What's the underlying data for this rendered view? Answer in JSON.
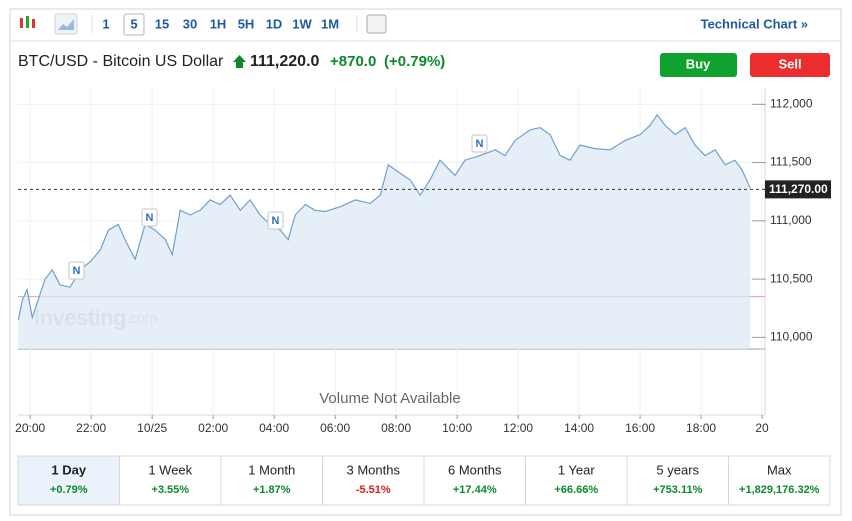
{
  "toolbar": {
    "intervals": [
      "1",
      "5",
      "15",
      "30",
      "1H",
      "5H",
      "1D",
      "1W",
      "1M"
    ],
    "selected": "5",
    "technical_chart": "Technical Chart »"
  },
  "header": {
    "name": "BTC/USD - Bitcoin US Dollar",
    "price": "111,220.0",
    "change": "+870.0",
    "change_pct": "(+0.79%)",
    "buy": "Buy",
    "sell": "Sell"
  },
  "chart_data": {
    "type": "line",
    "color": "#6fa0cf",
    "x": [
      -0.39,
      -0.26,
      -0.1,
      0.07,
      0.26,
      0.49,
      0.72,
      0.98,
      1.31,
      1.64,
      1.97,
      2.3,
      2.56,
      2.89,
      3.11,
      3.44,
      3.77,
      4.1,
      4.43,
      4.66,
      4.92,
      5.25,
      5.57,
      5.9,
      6.23,
      6.56,
      6.89,
      7.21,
      7.54,
      7.87,
      8.2,
      8.46,
      8.69,
      9.02,
      9.34,
      9.67,
      10.16,
      10.66,
      11.15,
      11.48,
      11.74,
      12.07,
      12.46,
      12.79,
      13.11,
      13.44,
      13.93,
      14.26,
      14.75,
      15.25,
      15.57,
      15.9,
      16.39,
      16.72,
      17.05,
      17.38,
      17.7,
      18.03,
      18.52,
      19.02,
      19.51,
      20.0,
      20.33,
      20.56,
      20.82,
      21.15,
      21.48,
      21.8,
      22.13,
      22.46,
      22.79,
      23.11,
      23.34,
      23.61
    ],
    "values": [
      110150,
      110320,
      110410,
      110170,
      110320,
      110500,
      110580,
      110450,
      110430,
      110580,
      110650,
      110750,
      110920,
      110970,
      110840,
      110670,
      110970,
      110920,
      110840,
      110710,
      111090,
      111050,
      111090,
      111180,
      111140,
      111220,
      111090,
      111180,
      111050,
      110970,
      110920,
      110840,
      111050,
      111140,
      111090,
      111080,
      111120,
      111180,
      111150,
      111220,
      111480,
      111420,
      111350,
      111220,
      111350,
      111520,
      111390,
      111520,
      111560,
      111610,
      111560,
      111690,
      111780,
      111800,
      111740,
      111560,
      111520,
      111650,
      111620,
      111610,
      111690,
      111740,
      111820,
      111910,
      111820,
      111740,
      111800,
      111650,
      111560,
      111610,
      111480,
      111520,
      111440,
      111280
    ],
    "xlim": [
      -0.4,
      23.67
    ],
    "ylim": [
      109900,
      112140
    ],
    "xticks": [
      {
        "value": 0,
        "label": "20:00"
      },
      {
        "value": 2,
        "label": "22:00"
      },
      {
        "value": 4,
        "label": "10/25"
      },
      {
        "value": 6,
        "label": "02:00"
      },
      {
        "value": 8,
        "label": "04:00"
      },
      {
        "value": 10,
        "label": "06:00"
      },
      {
        "value": 12,
        "label": "08:00"
      },
      {
        "value": 14,
        "label": "10:00"
      },
      {
        "value": 16,
        "label": "12:00"
      },
      {
        "value": 18,
        "label": "14:00"
      },
      {
        "value": 20,
        "label": "16:00"
      },
      {
        "value": 22,
        "label": "18:00"
      },
      {
        "value": 24,
        "label": "20"
      }
    ],
    "yticks": [
      {
        "value": 110000,
        "label": "110,000"
      },
      {
        "value": 110500,
        "label": "110,500"
      },
      {
        "value": 111000,
        "label": "111,000"
      },
      {
        "value": 111500,
        "label": "111,500"
      },
      {
        "value": 112000,
        "label": "112,000"
      }
    ],
    "last_price": {
      "value": 111270,
      "label": "111,270.00"
    },
    "prev_close": 110350,
    "news_markers": [
      "N",
      "N",
      "N",
      "N"
    ],
    "watermark": [
      "Investing",
      ".com"
    ],
    "volume_note": "Volume Not Available"
  },
  "periods": [
    {
      "label": "1 Day",
      "change": "+0.79%",
      "color": "#0a8a2a"
    },
    {
      "label": "1 Week",
      "change": "+3.55%",
      "color": "#0a8a2a"
    },
    {
      "label": "1 Month",
      "change": "+1.87%",
      "color": "#0a8a2a"
    },
    {
      "label": "3 Months",
      "change": "-5.51%",
      "color": "#d32020"
    },
    {
      "label": "6 Months",
      "change": "+17.44%",
      "color": "#0a8a2a"
    },
    {
      "label": "1 Year",
      "change": "+66.66%",
      "color": "#0a8a2a"
    },
    {
      "label": "5 years",
      "change": "+753.11%",
      "color": "#0a8a2a"
    },
    {
      "label": "Max",
      "change": "+1,829,176.32%",
      "color": "#0a8a2a"
    }
  ]
}
